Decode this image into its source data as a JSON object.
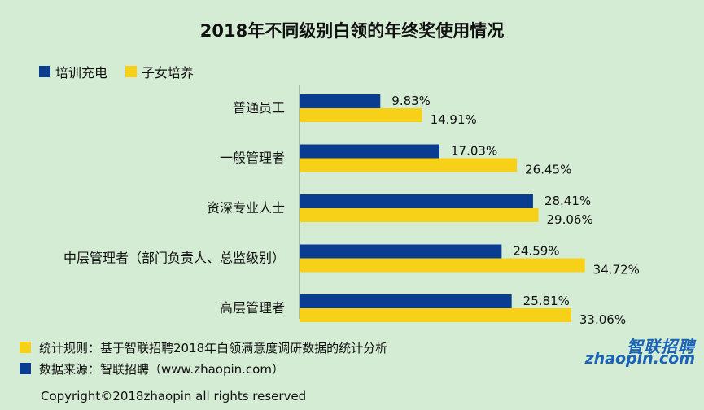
{
  "colors": {
    "training": "#0a3d8f",
    "children": "#f7d117",
    "background": "#d4ecd4"
  },
  "chart_data": {
    "type": "bar",
    "orientation": "horizontal",
    "title": "2018年不同级别白领的年终奖使用情况",
    "categories": [
      "普通员工",
      "一般管理者",
      "资深专业人士",
      "中层管理者（部门负责人、总监级别）",
      "高层管理者"
    ],
    "series": [
      {
        "name": "培训充电",
        "values": [
          9.83,
          17.03,
          28.41,
          24.59,
          25.81
        ],
        "labels": [
          "9.83%",
          "17.03%",
          "28.41%",
          "24.59%",
          "25.81%"
        ]
      },
      {
        "name": "子女培养",
        "values": [
          14.91,
          26.45,
          29.06,
          34.72,
          33.06
        ],
        "labels": [
          "14.91%",
          "26.45%",
          "29.06%",
          "34.72%",
          "33.06%"
        ]
      }
    ],
    "xlim": [
      0,
      40
    ],
    "legend": "top-left",
    "grid": false
  },
  "notes": [
    {
      "text": "统计规则：基于智联招聘2018年白领满意度调研数据的统计分析",
      "color": "#f7d117"
    },
    {
      "text": "数据来源：智联招聘（www.zhaopin.com）",
      "color": "#0a3d8f"
    }
  ],
  "copyright": "Copyright©2018zhaopin all rights reserved",
  "logo": {
    "cn": "智联招聘",
    "en": "zhaopin.com"
  }
}
